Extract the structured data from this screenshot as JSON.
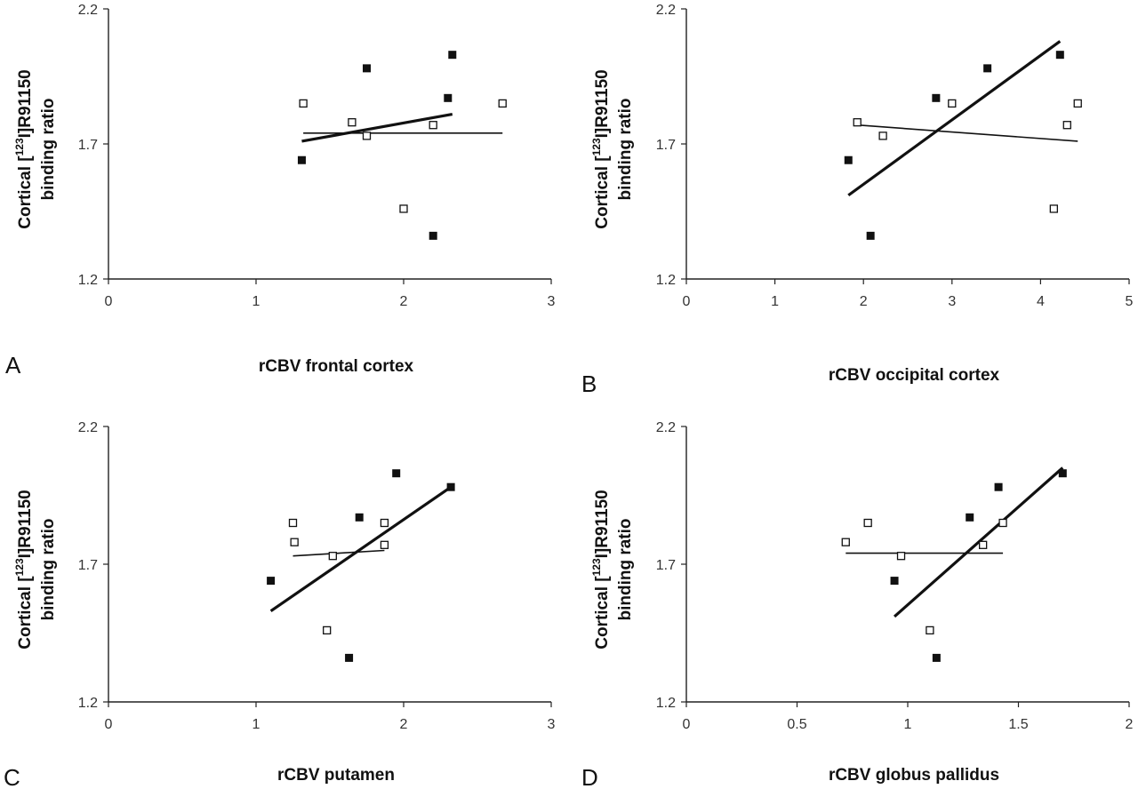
{
  "chart_data": [
    {
      "type": "scatter",
      "panel": "A",
      "xlabel": "rCBV frontal cortex",
      "ylabel_parts": [
        "Cortical [",
        "123",
        "I]R91150",
        "binding ratio"
      ],
      "xlim": [
        0,
        3
      ],
      "ylim": [
        1.2,
        2.2
      ],
      "xticks": [
        "0",
        "1",
        "2",
        "3"
      ],
      "yticks": [
        "1.2",
        "1.7",
        "2.2"
      ],
      "series": [
        {
          "marker": "filled-square",
          "points": [
            [
              1.31,
              1.64
            ],
            [
              1.75,
              1.98
            ],
            [
              2.2,
              1.36
            ],
            [
              2.3,
              1.87
            ],
            [
              2.33,
              2.03
            ]
          ],
          "fit": [
            [
              1.31,
              1.71
            ],
            [
              2.33,
              1.81
            ]
          ]
        },
        {
          "marker": "open-square",
          "points": [
            [
              1.32,
              1.85
            ],
            [
              1.65,
              1.78
            ],
            [
              1.75,
              1.73
            ],
            [
              2.0,
              1.46
            ],
            [
              2.2,
              1.77
            ],
            [
              2.67,
              1.85
            ]
          ],
          "fit": [
            [
              1.32,
              1.74
            ],
            [
              2.67,
              1.74
            ]
          ]
        }
      ]
    },
    {
      "type": "scatter",
      "panel": "B",
      "xlabel": "rCBV occipital cortex",
      "ylabel_parts": [
        "Cortical [",
        "123",
        "I]R91150",
        "binding ratio"
      ],
      "xlim": [
        0,
        5
      ],
      "ylim": [
        1.2,
        2.2
      ],
      "xticks": [
        "0",
        "1",
        "2",
        "3",
        "4",
        "5"
      ],
      "yticks": [
        "1.2",
        "1.7",
        "2.2"
      ],
      "series": [
        {
          "marker": "filled-square",
          "points": [
            [
              1.83,
              1.64
            ],
            [
              2.08,
              1.36
            ],
            [
              2.82,
              1.87
            ],
            [
              3.4,
              1.98
            ],
            [
              4.22,
              2.03
            ]
          ],
          "fit": [
            [
              1.83,
              1.51
            ],
            [
              4.22,
              2.08
            ]
          ]
        },
        {
          "marker": "open-square",
          "points": [
            [
              1.93,
              1.78
            ],
            [
              2.22,
              1.73
            ],
            [
              3.0,
              1.85
            ],
            [
              4.15,
              1.46
            ],
            [
              4.3,
              1.77
            ],
            [
              4.42,
              1.85
            ]
          ],
          "fit": [
            [
              1.93,
              1.77
            ],
            [
              4.42,
              1.71
            ]
          ]
        }
      ]
    },
    {
      "type": "scatter",
      "panel": "C",
      "xlabel": "rCBV putamen",
      "ylabel_parts": [
        "Cortical [",
        "123",
        "I]R91150",
        "binding ratio"
      ],
      "xlim": [
        0,
        3
      ],
      "ylim": [
        1.2,
        2.2
      ],
      "xticks": [
        "0",
        "1",
        "2",
        "3"
      ],
      "yticks": [
        "1.2",
        "1.7",
        "2.2"
      ],
      "series": [
        {
          "marker": "filled-square",
          "points": [
            [
              1.1,
              1.64
            ],
            [
              1.63,
              1.36
            ],
            [
              1.7,
              1.87
            ],
            [
              1.95,
              2.03
            ],
            [
              2.32,
              1.98
            ]
          ],
          "fit": [
            [
              1.1,
              1.53
            ],
            [
              2.32,
              1.98
            ]
          ]
        },
        {
          "marker": "open-square",
          "points": [
            [
              1.25,
              1.85
            ],
            [
              1.26,
              1.78
            ],
            [
              1.48,
              1.46
            ],
            [
              1.52,
              1.73
            ],
            [
              1.87,
              1.85
            ],
            [
              1.87,
              1.77
            ]
          ],
          "fit": [
            [
              1.25,
              1.73
            ],
            [
              1.87,
              1.75
            ]
          ]
        }
      ]
    },
    {
      "type": "scatter",
      "panel": "D",
      "xlabel": "rCBV globus pallidus",
      "ylabel_parts": [
        "Cortical [",
        "123",
        "I]R91150",
        "binding ratio"
      ],
      "xlim": [
        0,
        2
      ],
      "ylim": [
        1.2,
        2.2
      ],
      "xticks": [
        "0",
        "0.5",
        "1",
        "1.5",
        "2"
      ],
      "yticks": [
        "1.2",
        "1.7",
        "2.2"
      ],
      "series": [
        {
          "marker": "filled-square",
          "points": [
            [
              0.94,
              1.64
            ],
            [
              1.13,
              1.36
            ],
            [
              1.28,
              1.87
            ],
            [
              1.41,
              1.98
            ],
            [
              1.7,
              2.03
            ]
          ],
          "fit": [
            [
              0.94,
              1.51
            ],
            [
              1.7,
              2.05
            ]
          ]
        },
        {
          "marker": "open-square",
          "points": [
            [
              0.72,
              1.78
            ],
            [
              0.82,
              1.85
            ],
            [
              0.97,
              1.73
            ],
            [
              1.1,
              1.46
            ],
            [
              1.34,
              1.77
            ],
            [
              1.43,
              1.85
            ]
          ],
          "fit": [
            [
              0.72,
              1.74
            ],
            [
              1.43,
              1.74
            ]
          ]
        }
      ]
    }
  ]
}
